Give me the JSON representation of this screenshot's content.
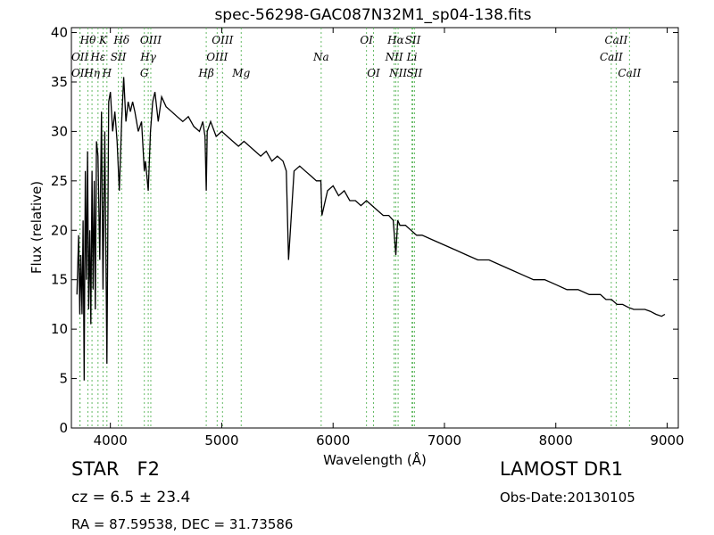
{
  "chart_data": {
    "type": "line",
    "title": "spec-56298-GAC087N32M1_sp04-138.fits",
    "xlabel": "Wavelength (Å)",
    "ylabel": "Flux (relative)",
    "xlim": [
      3650,
      9100
    ],
    "ylim": [
      0,
      40.5
    ],
    "xticks": [
      4000,
      5000,
      6000,
      7000,
      8000,
      9000
    ],
    "yticks": [
      0,
      5,
      10,
      15,
      20,
      25,
      30,
      35,
      40
    ],
    "grid": false,
    "line_color": "#000000",
    "marker_color": "#66bb66",
    "series": [
      {
        "x": [
          3700,
          3715,
          3725,
          3735,
          3745,
          3755,
          3765,
          3775,
          3785,
          3795,
          3805,
          3815,
          3825,
          3835,
          3845,
          3855,
          3865,
          3875,
          3889,
          3905,
          3920,
          3934,
          3950,
          3969,
          3985,
          4000,
          4020,
          4040,
          4060,
          4080,
          4101,
          4120,
          4140,
          4160,
          4180,
          4200,
          4220,
          4250,
          4280,
          4305,
          4315,
          4340,
          4360,
          4380,
          4400,
          4430,
          4460,
          4500,
          4550,
          4600,
          4650,
          4700,
          4750,
          4800,
          4830,
          4850,
          4861,
          4870,
          4900,
          4950,
          5000,
          5050,
          5100,
          5150,
          5200,
          5250,
          5300,
          5350,
          5400,
          5450,
          5500,
          5550,
          5580,
          5600,
          5650,
          5700,
          5750,
          5800,
          5850,
          5890,
          5900,
          5950,
          6000,
          6050,
          6100,
          6150,
          6200,
          6250,
          6300,
          6350,
          6400,
          6450,
          6500,
          6540,
          6563,
          6580,
          6600,
          6650,
          6700,
          6750,
          6800,
          6900,
          7000,
          7100,
          7200,
          7300,
          7400,
          7500,
          7600,
          7700,
          7800,
          7900,
          8000,
          8100,
          8200,
          8300,
          8400,
          8450,
          8500,
          8550,
          8600,
          8650,
          8700,
          8750,
          8800,
          8850,
          8900,
          8950,
          8980
        ],
        "y": [
          13.5,
          19.5,
          11.5,
          17.5,
          11.5,
          21,
          4.8,
          26,
          15,
          28,
          12,
          20,
          10.5,
          26,
          14,
          25,
          12,
          29,
          27.5,
          17,
          32,
          14,
          30,
          6.5,
          33,
          34,
          30,
          32,
          29,
          24,
          31,
          35.5,
          31,
          33,
          32,
          33,
          32,
          30,
          31,
          26,
          27,
          24,
          30,
          33,
          34,
          31,
          33.5,
          32.5,
          32,
          31.5,
          31,
          31.5,
          30.5,
          30,
          31,
          29.5,
          24,
          30,
          31,
          29.5,
          30,
          29.5,
          29,
          28.5,
          29,
          28.5,
          28,
          27.5,
          28,
          27,
          27.5,
          27,
          26,
          17,
          26,
          26.5,
          26,
          25.5,
          25,
          25,
          21.5,
          24,
          24.5,
          23.5,
          24,
          23,
          23,
          22.5,
          23,
          22.5,
          22,
          21.5,
          21.5,
          21,
          17.5,
          21,
          20.5,
          20.5,
          20,
          19.5,
          19.5,
          19,
          18.5,
          18,
          17.5,
          17,
          17,
          16.5,
          16,
          15.5,
          15,
          15,
          14.5,
          14,
          14,
          13.5,
          13.5,
          13,
          13,
          12.5,
          12.5,
          12.2,
          12,
          12,
          12,
          11.8,
          11.5,
          11.3,
          11.5
        ]
      }
    ],
    "lines": [
      {
        "label": "OII",
        "wavelength": 3727,
        "row": 1
      },
      {
        "label": "Hθ",
        "wavelength": 3798,
        "row": 0
      },
      {
        "label": "OII",
        "wavelength": 3727,
        "row": 2
      },
      {
        "label": "Hη",
        "wavelength": 3835,
        "row": 2
      },
      {
        "label": "Hε",
        "wavelength": 3889,
        "row": 1
      },
      {
        "label": "K",
        "wavelength": 3934,
        "row": 0
      },
      {
        "label": "SII",
        "wavelength": 4072,
        "row": 1
      },
      {
        "label": "H",
        "wavelength": 3969,
        "row": 2
      },
      {
        "label": "Hδ",
        "wavelength": 4101,
        "row": 0
      },
      {
        "label": "OIII",
        "wavelength": 4363,
        "row": 0
      },
      {
        "label": "Hγ",
        "wavelength": 4340,
        "row": 1
      },
      {
        "label": "G",
        "wavelength": 4305,
        "row": 2
      },
      {
        "label": "OIII",
        "wavelength": 5007,
        "row": 0
      },
      {
        "label": "OIII",
        "wavelength": 4959,
        "row": 1
      },
      {
        "label": "Hβ",
        "wavelength": 4861,
        "row": 2
      },
      {
        "label": "Mg",
        "wavelength": 5175,
        "row": 2
      },
      {
        "label": "Na",
        "wavelength": 5893,
        "row": 1
      },
      {
        "label": "OI",
        "wavelength": 6300,
        "row": 0
      },
      {
        "label": "OI",
        "wavelength": 6363,
        "row": 2
      },
      {
        "label": "Hα",
        "wavelength": 6563,
        "row": 0
      },
      {
        "label": "SII",
        "wavelength": 6716,
        "row": 0
      },
      {
        "label": "NII",
        "wavelength": 6548,
        "row": 1
      },
      {
        "label": "Li",
        "wavelength": 6708,
        "row": 1
      },
      {
        "label": "NII",
        "wavelength": 6584,
        "row": 2
      },
      {
        "label": "SII",
        "wavelength": 6731,
        "row": 2
      },
      {
        "label": "CaII",
        "wavelength": 8542,
        "row": 0
      },
      {
        "label": "CaII",
        "wavelength": 8498,
        "row": 1
      },
      {
        "label": "CaII",
        "wavelength": 8662,
        "row": 2
      }
    ]
  },
  "info": {
    "object_class": "STAR",
    "subclass": "F2",
    "redshift": "cz = 6.5 ± 23.4",
    "coords": "RA = 87.59538, DEC = 31.73586",
    "survey": "LAMOST DR1",
    "obs_date": "Obs-Date:20130105"
  }
}
